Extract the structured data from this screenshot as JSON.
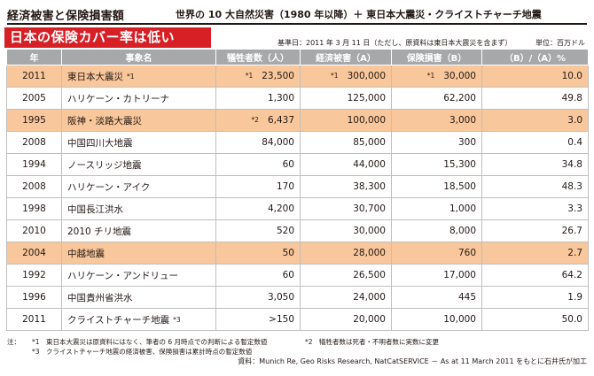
{
  "header": {
    "title": "経済被害と保険損害額",
    "subtitle": "世界の 10 大自然災害（1980 年以降）＋ 東日本大震災・クライストチャーチ地震"
  },
  "tagline": "日本の保険カバー率は低い",
  "meta": {
    "base_date": "基準日：2011 年 3 月 11 日（ただし、原資料は東日本大震災を含まず）",
    "unit": "単位：百万ドル"
  },
  "table": {
    "columns": [
      "年",
      "事象名",
      "犠牲者数（人）",
      "経済被害（A）",
      "保険損害（B）",
      "（B）/（A）%"
    ],
    "rows": [
      {
        "year": "2011",
        "event": "東日本大震災",
        "event_mark": "*1",
        "deaths": "23,500",
        "deaths_mark": "*1",
        "economic": "300,000",
        "economic_mark": "*1",
        "insured": "30,000",
        "insured_mark": "*1",
        "ratio": "10.0",
        "highlight": true
      },
      {
        "year": "2005",
        "event": "ハリケーン・カトリーナ",
        "event_mark": "",
        "deaths": "1,300",
        "deaths_mark": "",
        "economic": "125,000",
        "economic_mark": "",
        "insured": "62,200",
        "insured_mark": "",
        "ratio": "49.8",
        "highlight": false
      },
      {
        "year": "1995",
        "event": "阪神・淡路大震災",
        "event_mark": "",
        "deaths": "6,437",
        "deaths_mark": "*2",
        "economic": "100,000",
        "economic_mark": "",
        "insured": "3,000",
        "insured_mark": "",
        "ratio": "3.0",
        "highlight": true
      },
      {
        "year": "2008",
        "event": "中国四川大地震",
        "event_mark": "",
        "deaths": "84,000",
        "deaths_mark": "",
        "economic": "85,000",
        "economic_mark": "",
        "insured": "300",
        "insured_mark": "",
        "ratio": "0.4",
        "highlight": false
      },
      {
        "year": "1994",
        "event": "ノースリッジ地震",
        "event_mark": "",
        "deaths": "60",
        "deaths_mark": "",
        "economic": "44,000",
        "economic_mark": "",
        "insured": "15,300",
        "insured_mark": "",
        "ratio": "34.8",
        "highlight": false
      },
      {
        "year": "2008",
        "event": "ハリケーン・アイク",
        "event_mark": "",
        "deaths": "170",
        "deaths_mark": "",
        "economic": "38,300",
        "economic_mark": "",
        "insured": "18,500",
        "insured_mark": "",
        "ratio": "48.3",
        "highlight": false
      },
      {
        "year": "1998",
        "event": "中国長江洪水",
        "event_mark": "",
        "deaths": "4,200",
        "deaths_mark": "",
        "economic": "30,700",
        "economic_mark": "",
        "insured": "1,000",
        "insured_mark": "",
        "ratio": "3.3",
        "highlight": false
      },
      {
        "year": "2010",
        "event": "2010 チリ地震",
        "event_mark": "",
        "deaths": "520",
        "deaths_mark": "",
        "economic": "30,000",
        "economic_mark": "",
        "insured": "8,000",
        "insured_mark": "",
        "ratio": "26.7",
        "highlight": false
      },
      {
        "year": "2004",
        "event": "中越地震",
        "event_mark": "",
        "deaths": "50",
        "deaths_mark": "",
        "economic": "28,000",
        "economic_mark": "",
        "insured": "760",
        "insured_mark": "",
        "ratio": "2.7",
        "highlight": true
      },
      {
        "year": "1992",
        "event": "ハリケーン・アンドリュー",
        "event_mark": "",
        "deaths": "60",
        "deaths_mark": "",
        "economic": "26,500",
        "economic_mark": "",
        "insured": "17,000",
        "insured_mark": "",
        "ratio": "64.2",
        "highlight": false
      },
      {
        "year": "1996",
        "event": "中国貴州省洪水",
        "event_mark": "",
        "deaths": "3,050",
        "deaths_mark": "",
        "economic": "24,000",
        "economic_mark": "",
        "insured": "445",
        "insured_mark": "",
        "ratio": "1.9",
        "highlight": false
      },
      {
        "year": "2011",
        "event": "クライストチャーチ地震",
        "event_mark": "*3",
        "deaths": ">150",
        "deaths_mark": "",
        "economic": "20,000",
        "economic_mark": "",
        "insured": "10,000",
        "insured_mark": "",
        "ratio": "50.0",
        "highlight": false
      }
    ]
  },
  "notes": {
    "label": "注：",
    "note1": "*1　東日本大震災は原資料にはなく、筆者の 6 月時点での判断による暫定数値",
    "note2": "*2　犠牲者数は死者・不明者数に実数に変更",
    "note3": "*3　クライストチャーチ地震の経済被害、保険損害は累計時点の暫定数値",
    "source": "資料：Munich Re, Geo Risks Research, NatCatSERVICE － As at 11 March 2011 をもとに石井氏が加工"
  }
}
